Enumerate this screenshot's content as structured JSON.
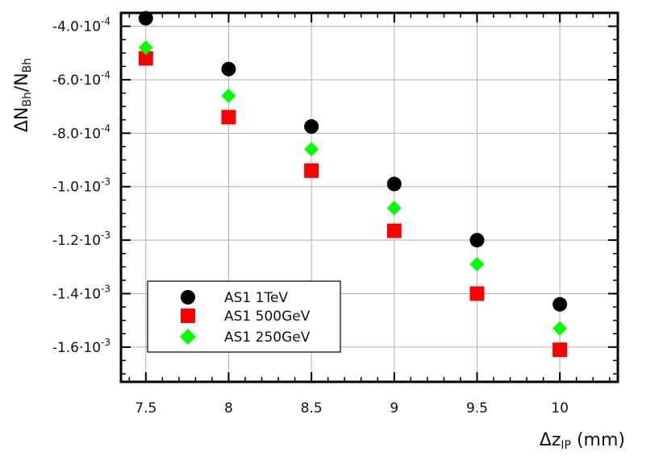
{
  "chart_data": {
    "type": "scatter",
    "title": "",
    "xlabel": {
      "main": "Δz",
      "sub": "IP",
      "unit": " (mm)"
    },
    "ylabel": {
      "a": "ΔN",
      "a_sub": "Bh",
      "b": "/N",
      "b_sub": "Bh"
    },
    "xlim": [
      7.35,
      10.35
    ],
    "ylim": [
      -0.00173,
      -0.00035
    ],
    "x_ticks": [
      {
        "value": 7.5,
        "label": "7.5"
      },
      {
        "value": 8,
        "label": "8"
      },
      {
        "value": 8.5,
        "label": "8.5"
      },
      {
        "value": 9,
        "label": "9"
      },
      {
        "value": 9.5,
        "label": "9.5"
      },
      {
        "value": 10,
        "label": "10"
      }
    ],
    "y_ticks": [
      {
        "value": -0.0004,
        "mant": "-4.0·10",
        "exp": "-4"
      },
      {
        "value": -0.0006,
        "mant": "-6.0·10",
        "exp": "-4"
      },
      {
        "value": -0.0008,
        "mant": "-8.0·10",
        "exp": "-4"
      },
      {
        "value": -0.001,
        "mant": "-1.0·10",
        "exp": "-3"
      },
      {
        "value": -0.0012,
        "mant": "-1.2·10",
        "exp": "-3"
      },
      {
        "value": -0.0014,
        "mant": "-1.4·10",
        "exp": "-3"
      },
      {
        "value": -0.0016,
        "mant": "-1.6·10",
        "exp": "-3"
      }
    ],
    "grid": true,
    "legend_position": "bottom-left",
    "series": [
      {
        "name": "AS1 1TeV",
        "marker": "circle",
        "color": "#000000",
        "x": [
          7.5,
          8,
          8.5,
          9,
          9.5,
          10
        ],
        "y": [
          -0.00037,
          -0.00056,
          -0.000775,
          -0.00099,
          -0.0012,
          -0.00144
        ]
      },
      {
        "name": "AS1 500GeV",
        "marker": "square",
        "color": "#ff0000",
        "x": [
          7.5,
          8,
          8.5,
          9,
          9.5,
          10
        ],
        "y": [
          -0.00052,
          -0.00074,
          -0.00094,
          -0.001165,
          -0.0014,
          -0.00161
        ]
      },
      {
        "name": "AS1 250GeV",
        "marker": "diamond",
        "color": "#00ff00",
        "x": [
          7.5,
          8,
          8.5,
          9,
          9.5,
          10
        ],
        "y": [
          -0.00048,
          -0.00066,
          -0.00086,
          -0.00108,
          -0.00129,
          -0.00153
        ]
      }
    ]
  }
}
